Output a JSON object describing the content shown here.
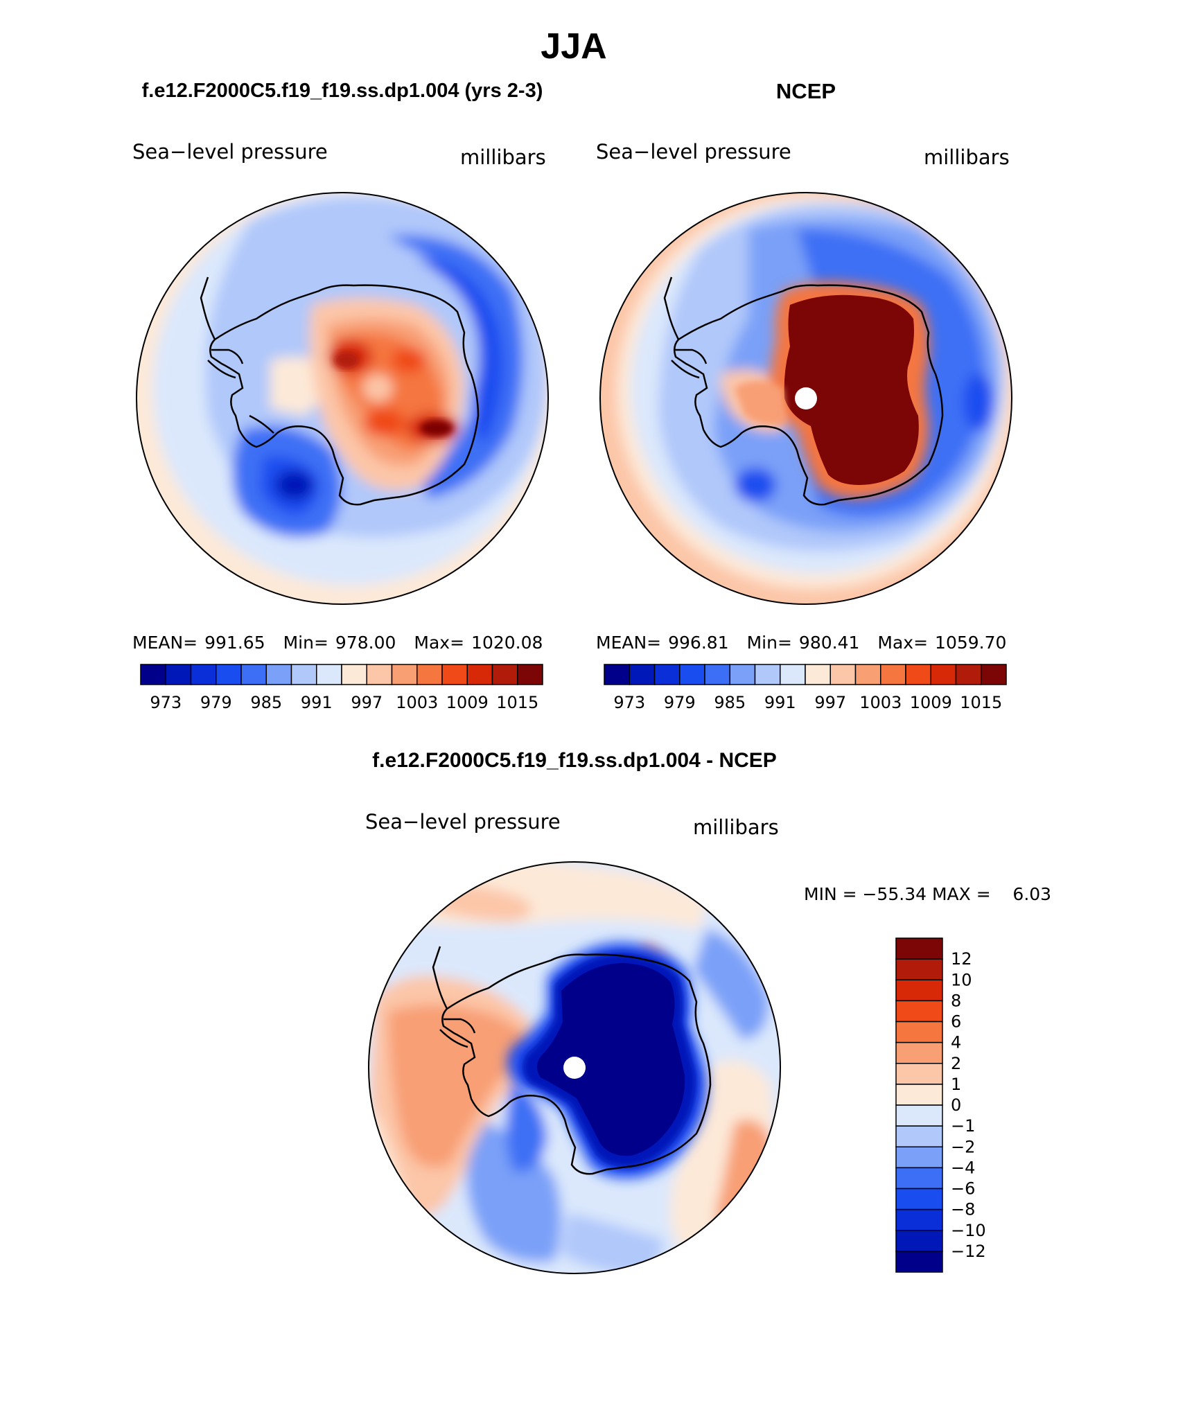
{
  "title": "JJA",
  "panels": [
    {
      "id": "model",
      "heading": "f.e12.F2000C5.f19_f19.ss.dp1.004 (yrs 2-3)",
      "variable": "Sea−level pressure",
      "units": "millibars",
      "stats": {
        "mean_label": "MEAN=",
        "mean": "991.65",
        "min_label": "Min=",
        "min": "978.00",
        "max_label": "Max=",
        "max": "1020.08"
      }
    },
    {
      "id": "obs",
      "heading": "NCEP",
      "variable": "Sea−level pressure",
      "units": "millibars",
      "stats": {
        "mean_label": "MEAN=",
        "mean": "996.81",
        "min_label": "Min=",
        "min": "980.41",
        "max_label": "Max=",
        "max": "1059.70"
      }
    }
  ],
  "abs_colorbar": {
    "colors": [
      "#00008b",
      "#0018b8",
      "#0a2fd8",
      "#1a4df0",
      "#3c6ff5",
      "#7aa0f8",
      "#b0c8fa",
      "#dbe8fc",
      "#fde9d8",
      "#fcc6a8",
      "#f89f74",
      "#f5763f",
      "#f04a18",
      "#d72808",
      "#b11c0a",
      "#7c0505"
    ],
    "labels": [
      "973",
      "979",
      "985",
      "991",
      "997",
      "1003",
      "1009",
      "1015"
    ]
  },
  "diff": {
    "heading": "f.e12.F2000C5.f19_f19.ss.dp1.004 - NCEP",
    "variable": "Sea−level pressure",
    "units": "millibars",
    "minmax": "MIN = −55.34 MAX =    6.03",
    "colors": [
      "#00008b",
      "#0018b8",
      "#0a2fd8",
      "#1a4df0",
      "#3c6ff5",
      "#7aa0f8",
      "#b0c8fa",
      "#dbe8fc",
      "#fde9d8",
      "#fcc6a8",
      "#f89f74",
      "#f5763f",
      "#f04a18",
      "#d72808",
      "#b11c0a",
      "#7c0505"
    ],
    "labels": [
      "12",
      "10",
      "8",
      "6",
      "4",
      "2",
      "1",
      "0",
      "−1",
      "−2",
      "−4",
      "−6",
      "−8",
      "−10",
      "−12"
    ]
  }
}
